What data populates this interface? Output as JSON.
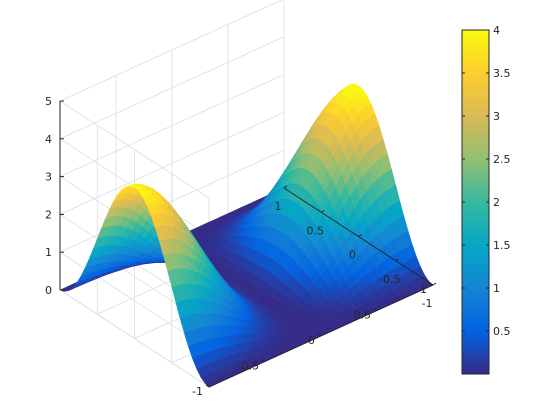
{
  "chart_data": {
    "type": "surface",
    "title": "",
    "xlabel": "",
    "ylabel": "",
    "zlabel": "",
    "xlim": [
      -1,
      1
    ],
    "ylim": [
      -1,
      1
    ],
    "zlim": [
      0,
      5
    ],
    "clim": [
      0,
      4
    ],
    "grid": true,
    "colormap": "parula",
    "surface": {
      "description_note": "",
      "peaks": [
        {
          "x": 1,
          "y": 0,
          "z": 4
        },
        {
          "x": -1,
          "y": 0,
          "z": 4
        }
      ],
      "valley_along_x": 0,
      "z_at_center": 0
    },
    "x_ticks": [
      -1,
      -0.5,
      0,
      0.5,
      1
    ],
    "x_tick_labels": [
      "-1",
      "-0.5",
      "0",
      "0.5",
      "1"
    ],
    "y_ticks": [
      -1,
      -0.5,
      0,
      0.5,
      1
    ],
    "y_tick_labels": [
      "-1",
      "-0.5",
      "0",
      "0.5",
      "1"
    ],
    "z_ticks": [
      0,
      1,
      2,
      3,
      4,
      5
    ],
    "z_tick_labels": [
      "0",
      "1",
      "2",
      "3",
      "4",
      "5"
    ],
    "colorbar": {
      "ticks": [
        0.5,
        1,
        1.5,
        2,
        2.5,
        3,
        3.5,
        4
      ],
      "tick_labels": [
        "0.5",
        "1",
        "1.5",
        "2",
        "2.5",
        "3",
        "3.5",
        "4"
      ],
      "location": "east"
    }
  }
}
